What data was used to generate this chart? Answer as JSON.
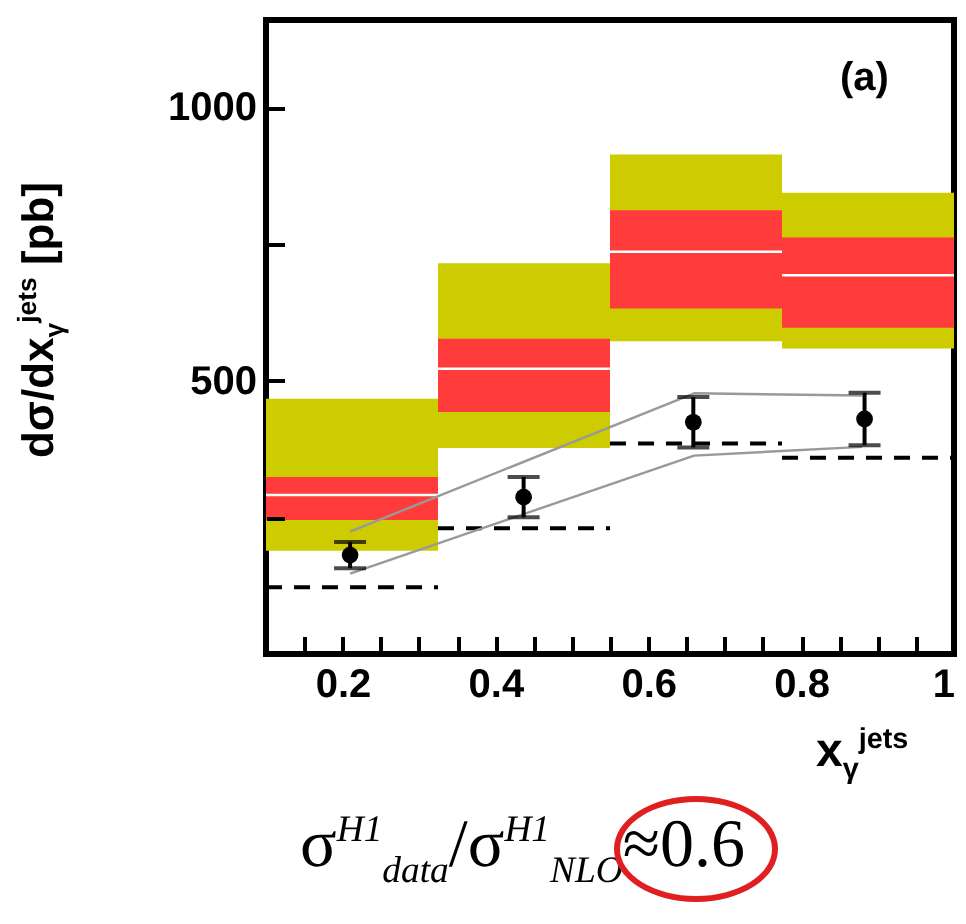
{
  "chart_data": {
    "type": "bar",
    "xlabel": "x$_{γ}$$^{jets}$",
    "ylabel": "dσ/dx$_{γ}$$^{jets}$ [pb]",
    "annotations": [
      "(a)",
      "σ$^{H1}$$_{data}$/σ$^{H1}$$_{NLO}$≈0.6"
    ],
    "xlim": [
      0.1,
      1
    ],
    "xticks": [
      {
        "value": 0.1,
        "label": null
      },
      {
        "value": 0.15,
        "label": null
      },
      0.2,
      {
        "value": 0.25,
        "label": null
      },
      {
        "value": 0.3,
        "label": null
      },
      {
        "value": 0.35,
        "label": null
      },
      0.4,
      {
        "value": 0.45,
        "label": null
      },
      {
        "value": 0.5,
        "label": null
      },
      {
        "value": 0.55,
        "label": null
      },
      0.6,
      {
        "value": 0.65,
        "label": null
      },
      {
        "value": 0.7,
        "label": null
      },
      {
        "value": 0.75,
        "label": null
      },
      0.8,
      {
        "value": 0.85,
        "label": null
      },
      {
        "value": 0.9,
        "label": null
      },
      {
        "value": 0.95,
        "label": null
      },
      1
    ],
    "ylim": [
      0,
      1160
    ],
    "yticks": [
      {
        "value": 0,
        "label": null
      },
      {
        "value": 250,
        "label": null
      },
      500,
      {
        "value": 750,
        "label": null
      },
      1000
    ],
    "series": [
      {
        "color": "#cccc00",
        "x": [
          0.2125,
          0.4375,
          0.6625,
          0.8875
        ],
        "base": [
          189,
          377,
          572,
          559
        ],
        "values": [
          278,
          338,
          342,
          285
        ]
      },
      {
        "color": "#ff3b3b",
        "x": [
          0.2125,
          0.4375,
          0.6625,
          0.8875
        ],
        "base": [
          245,
          443,
          632,
          597
        ],
        "values": [
          79,
          134,
          180,
          165
        ]
      },
      {
        "type": "line",
        "color": "#ffffff",
        "x": [
          0.1,
          0.325
        ],
        "values": [
          291,
          291
        ]
      },
      {
        "type": "line",
        "color": "#ffffff",
        "x": [
          0.325,
          0.55
        ],
        "values": [
          522,
          522
        ]
      },
      {
        "type": "line",
        "color": "#ffffff",
        "x": [
          0.55,
          0.775
        ],
        "values": [
          736,
          736
        ]
      },
      {
        "type": "line",
        "color": "#ffffff",
        "x": [
          0.775,
          1
        ],
        "values": [
          693,
          693
        ]
      },
      {
        "type": "line",
        "color": "#000000",
        "line_style": "dashed",
        "x": [
          0.1,
          0.325
        ],
        "values": [
          122,
          122
        ]
      },
      {
        "type": "line",
        "color": "#000000",
        "line_style": "dashed",
        "x": [
          0.325,
          0.55
        ],
        "values": [
          230,
          230
        ]
      },
      {
        "type": "line",
        "color": "#000000",
        "line_style": "dashed",
        "x": [
          0.55,
          0.775
        ],
        "values": [
          385,
          385
        ]
      },
      {
        "type": "line",
        "color": "#000000",
        "line_style": "dashed",
        "x": [
          0.775,
          1
        ],
        "values": [
          359,
          359
        ]
      },
      {
        "type": "line",
        "color": "#999999",
        "x": [
          0.21,
          0.66,
          0.88
        ],
        "values": [
          224,
          477,
          473
        ]
      },
      {
        "type": "line",
        "color": "#999999",
        "x": [
          0.21,
          0.66,
          0.88
        ],
        "values": [
          147,
          363,
          379
        ]
      },
      {
        "type": "scatter",
        "color": "#000000",
        "marker": "circle",
        "x": [
          0.21,
          0.437,
          0.659,
          0.883
        ],
        "values": [
          181,
          287,
          424,
          430
        ],
        "errors": [
          24,
          37,
          46,
          48
        ]
      }
    ]
  }
}
